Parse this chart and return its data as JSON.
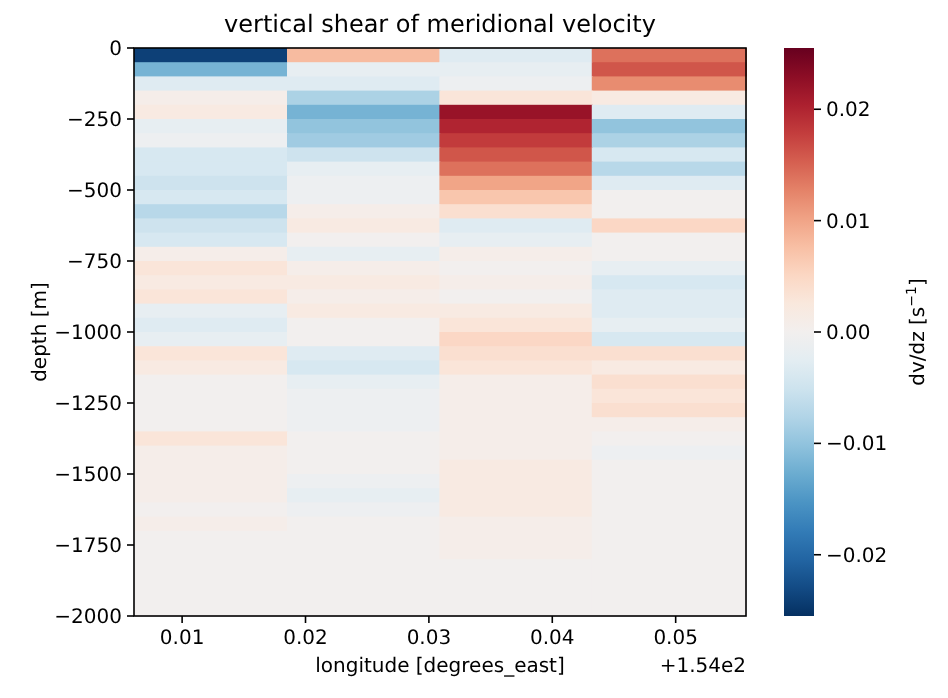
{
  "chart_data": {
    "type": "heatmap",
    "title": "vertical shear of meridional velocity",
    "xlabel": "longitude [degrees_east]",
    "ylabel": "depth [m]",
    "clabel": "dv/dz [s$^{−1}$]",
    "annotations": [
      "+1.54e2"
    ],
    "x": [
      0.0123,
      0.0247,
      0.037,
      0.0494
    ],
    "y": [
      -25,
      -75,
      -125,
      -175,
      -225,
      -275,
      -325,
      -375,
      -425,
      -475,
      -525,
      -575,
      -625,
      -675,
      -725,
      -775,
      -825,
      -875,
      -925,
      -975,
      -1025,
      -1075,
      -1125,
      -1175,
      -1225,
      -1275,
      -1325,
      -1375,
      -1425,
      -1475,
      -1525,
      -1575,
      -1625,
      -1675,
      -1725,
      -1775,
      -1825,
      -1875,
      -1925,
      -1975
    ],
    "xlim": [
      0.0061,
      0.0557
    ],
    "xticks": [
      0.01,
      0.02,
      0.03,
      0.04,
      0.05
    ],
    "ylim": [
      -2000,
      0
    ],
    "yticks": [
      0,
      {
        "value": -250,
        "label": "−250"
      },
      {
        "value": -500,
        "label": "−500"
      },
      {
        "value": -750,
        "label": "−750"
      },
      {
        "value": -1000,
        "label": "−1000"
      },
      {
        "value": -1250,
        "label": "−1250"
      },
      {
        "value": -1500,
        "label": "−1500"
      },
      {
        "value": -1750,
        "label": "−1750"
      },
      {
        "value": -2000,
        "label": "−2000"
      }
    ],
    "clim": [
      -0.0255,
      0.0255
    ],
    "cticks": [
      {
        "value": -0.02,
        "label": "−0.02"
      },
      {
        "value": -0.01,
        "label": "−0.01"
      },
      {
        "value": 0,
        "label": "0.00"
      },
      {
        "value": 0.01,
        "label": "0.01"
      },
      {
        "value": 0.02,
        "label": "0.02"
      }
    ],
    "cells": [
      [
        -0.024,
        0.008,
        -0.003,
        0.014
      ],
      [
        -0.012,
        -0.002,
        -0.002,
        0.016
      ],
      [
        -0.003,
        -0.003,
        -0.001,
        0.012
      ],
      [
        0.001,
        -0.008,
        0.003,
        0.002
      ],
      [
        0.002,
        -0.012,
        0.022,
        -0.003
      ],
      [
        -0.002,
        -0.01,
        0.02,
        -0.01
      ],
      [
        -0.001,
        -0.009,
        0.018,
        -0.008
      ],
      [
        -0.004,
        -0.005,
        0.016,
        -0.004
      ],
      [
        -0.004,
        -0.002,
        0.014,
        -0.007
      ],
      [
        -0.005,
        -0.001,
        0.01,
        -0.003
      ],
      [
        -0.004,
        -0.001,
        0.007,
        0
      ],
      [
        -0.007,
        0.001,
        0.004,
        0
      ],
      [
        -0.005,
        0.002,
        -0.003,
        0.005
      ],
      [
        -0.004,
        0,
        -0.002,
        0
      ],
      [
        0.001,
        -0.002,
        0.001,
        0
      ],
      [
        0.003,
        0.001,
        0,
        -0.002
      ],
      [
        0.002,
        0.002,
        0.001,
        -0.004
      ],
      [
        0.003,
        0.001,
        0,
        -0.003
      ],
      [
        -0.002,
        0.002,
        0.002,
        -0.003
      ],
      [
        -0.003,
        0,
        0.003,
        -0.002
      ],
      [
        -0.002,
        0,
        0.005,
        -0.004
      ],
      [
        0.003,
        -0.003,
        0.004,
        0.004
      ],
      [
        0.002,
        -0.004,
        0.003,
        0.002
      ],
      [
        0,
        -0.002,
        0.001,
        0.004
      ],
      [
        0,
        -0.001,
        0.001,
        0.003
      ],
      [
        0,
        -0.001,
        0.001,
        0.004
      ],
      [
        0,
        -0.001,
        0.001,
        0.001
      ],
      [
        0.003,
        0,
        0.001,
        0
      ],
      [
        0.001,
        0,
        0.001,
        -0.001
      ],
      [
        0.001,
        0,
        0.002,
        0
      ],
      [
        0.001,
        -0.001,
        0.002,
        0
      ],
      [
        0.001,
        -0.002,
        0.002,
        0
      ],
      [
        0,
        -0.001,
        0.002,
        0
      ],
      [
        0.001,
        0,
        0.001,
        0
      ],
      [
        0,
        0,
        0.001,
        0
      ],
      [
        0,
        0,
        0.001,
        0
      ],
      [
        0,
        0,
        0,
        0
      ],
      [
        0,
        0,
        0,
        0
      ],
      [
        0,
        0,
        0,
        0
      ],
      [
        0,
        0,
        0,
        0
      ]
    ]
  }
}
